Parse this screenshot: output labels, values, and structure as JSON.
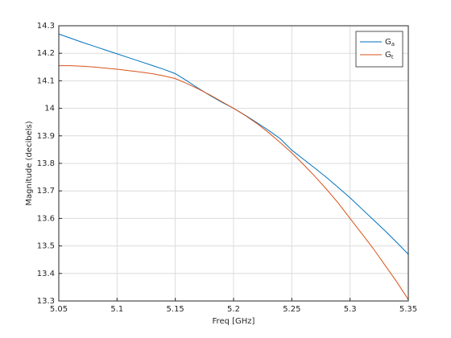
{
  "chart_data": {
    "type": "line",
    "x_label": "Freq [GHz]",
    "y_label": "Magnitude (decibels)",
    "x": [
      5.05,
      5.06,
      5.07,
      5.08,
      5.09,
      5.1,
      5.11,
      5.12,
      5.13,
      5.14,
      5.15,
      5.16,
      5.17,
      5.18,
      5.19,
      5.2,
      5.21,
      5.22,
      5.23,
      5.24,
      5.25,
      5.26,
      5.27,
      5.28,
      5.29,
      5.3,
      5.31,
      5.32,
      5.33,
      5.34,
      5.35
    ],
    "series": [
      {
        "name": "Ga",
        "color": "#0072bd",
        "values": [
          14.27,
          14.255,
          14.24,
          14.226,
          14.212,
          14.198,
          14.184,
          14.17,
          14.156,
          14.142,
          14.126,
          14.1,
          14.072,
          14.046,
          14.022,
          14.0,
          13.975,
          13.948,
          13.92,
          13.89,
          13.848,
          13.815,
          13.782,
          13.748,
          13.712,
          13.675,
          13.635,
          13.595,
          13.555,
          13.513,
          13.47
        ]
      },
      {
        "name": "Gt",
        "color": "#d95319",
        "values": [
          14.155,
          14.155,
          14.153,
          14.15,
          14.146,
          14.142,
          14.137,
          14.132,
          14.126,
          14.118,
          14.108,
          14.09,
          14.07,
          14.048,
          14.024,
          14.0,
          13.974,
          13.945,
          13.912,
          13.876,
          13.838,
          13.796,
          13.752,
          13.705,
          13.655,
          13.6,
          13.545,
          13.49,
          13.43,
          13.37,
          13.305
        ]
      }
    ],
    "xlim": [
      5.05,
      5.35
    ],
    "xticks": [
      5.05,
      5.1,
      5.15,
      5.2,
      5.25,
      5.3,
      5.35
    ],
    "ylim": [
      13.3,
      14.3
    ],
    "yticks": [
      13.3,
      13.4,
      13.5,
      13.6,
      13.7,
      13.8,
      13.9,
      14,
      14.1,
      14.2,
      14.3
    ],
    "grid": true,
    "legend": "top-right"
  }
}
